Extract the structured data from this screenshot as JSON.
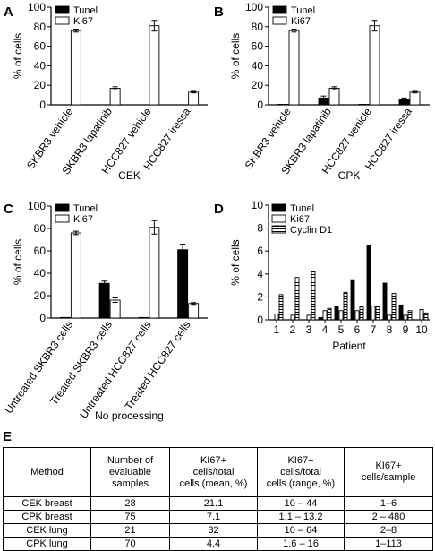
{
  "panels": [
    {
      "letter": "A",
      "xlabel": "CEK",
      "ylabel": "% of cells",
      "legend": [
        "Tunel",
        "Ki67"
      ]
    },
    {
      "letter": "B",
      "xlabel": "CPK",
      "ylabel": "% of cells",
      "legend": [
        "Tunel",
        "Ki67"
      ]
    },
    {
      "letter": "C",
      "xlabel": "No processing",
      "ylabel": "% of cells",
      "legend": [
        "Tunel",
        "Ki67"
      ]
    },
    {
      "letter": "D",
      "xlabel": "Patient",
      "ylabel": "% of cells",
      "legend": [
        "Tunel",
        "Ki67",
        "Cyclin D1"
      ]
    }
  ],
  "chart_data": [
    {
      "type": "bar",
      "categories": [
        "SKBR3 vehicle",
        "SKBR3 lapatinib",
        "HCC827 vehicle",
        "HCC827 iressa"
      ],
      "series": [
        {
          "name": "Tunel",
          "values": [
            0,
            0,
            0,
            0
          ]
        },
        {
          "name": "Ki67",
          "values": [
            76,
            17,
            81,
            13
          ],
          "errors": [
            1.5,
            1.5,
            5.5,
            0.8
          ]
        }
      ],
      "xlabel": "CEK",
      "ylabel": "% of cells",
      "ylim": [
        0,
        100
      ],
      "yticks": [
        0,
        20,
        40,
        60,
        80,
        100
      ]
    },
    {
      "type": "bar",
      "categories": [
        "SKBR3 vehicle",
        "SKBR3 lapatinib",
        "HCC827 vehicle",
        "HCC827 iressa"
      ],
      "series": [
        {
          "name": "Tunel",
          "values": [
            0.5,
            7,
            0.5,
            6
          ],
          "errors": [
            0,
            2,
            0,
            1
          ]
        },
        {
          "name": "Ki67",
          "values": [
            76,
            17,
            81,
            13
          ],
          "errors": [
            1.5,
            1.5,
            5.5,
            0.8
          ]
        }
      ],
      "xlabel": "CPK",
      "ylabel": "% of cells",
      "ylim": [
        0,
        100
      ],
      "yticks": [
        0,
        20,
        40,
        60,
        80,
        100
      ]
    },
    {
      "type": "bar",
      "categories": [
        "Untreated SKBR3 cells",
        "Treated SKBR3 cells",
        "Untreated HCC827 cells",
        "Treated HCC827 cells"
      ],
      "series": [
        {
          "name": "Tunel",
          "values": [
            0.5,
            31,
            0.5,
            61
          ],
          "errors": [
            0,
            2,
            0,
            5
          ]
        },
        {
          "name": "Ki67",
          "values": [
            76,
            16,
            81,
            13
          ],
          "errors": [
            1.5,
            2,
            6,
            0.8
          ]
        }
      ],
      "xlabel": "No processing",
      "ylabel": "% of cells",
      "ylim": [
        0,
        100
      ],
      "yticks": [
        0,
        20,
        40,
        60,
        80,
        100
      ]
    },
    {
      "type": "bar",
      "categories": [
        "1",
        "2",
        "3",
        "4",
        "5",
        "6",
        "7",
        "8",
        "9",
        "10"
      ],
      "series": [
        {
          "name": "Tunel",
          "values": [
            0,
            0,
            0,
            0.2,
            1.2,
            3.5,
            6.5,
            3.2,
            1.3,
            0
          ]
        },
        {
          "name": "Ki67",
          "values": [
            0.5,
            0.4,
            0.4,
            0.8,
            0.8,
            0.8,
            1.2,
            0.4,
            0.4,
            0.9
          ]
        },
        {
          "name": "Cyclin D1",
          "values": [
            2.2,
            3.7,
            4.2,
            1.0,
            2.4,
            1.2,
            1.2,
            2.3,
            0.8,
            0.6
          ]
        }
      ],
      "xlabel": "Patient",
      "ylabel": "% of cells",
      "ylim": [
        0,
        10
      ],
      "yticks": [
        0,
        2,
        4,
        6,
        8,
        10
      ]
    }
  ],
  "table": {
    "letter": "E",
    "headers": [
      "Method",
      "Number of\nevaluable\nsamples",
      "KI67+\ncells/total\ncells (mean, %)",
      "KI67+\ncells/total\ncells (range, %)",
      "KI67+\ncells/sample"
    ],
    "rows": [
      [
        "CEK breast",
        "28",
        "21.1",
        "10 – 44",
        "1–6"
      ],
      [
        "CPK breast",
        "75",
        "7.1",
        "1.1 – 13.2",
        "2 – 480"
      ],
      [
        "CEK lung",
        "21",
        "32",
        "10 – 64",
        "2–8"
      ],
      [
        "CPK lung",
        "70",
        "4.4",
        "1.6 – 16",
        "1–113"
      ]
    ]
  },
  "colors": {
    "tunel": "#000000",
    "ki67": "#ffffff",
    "cyclin": "#ffffff",
    "axis": "#000000"
  }
}
